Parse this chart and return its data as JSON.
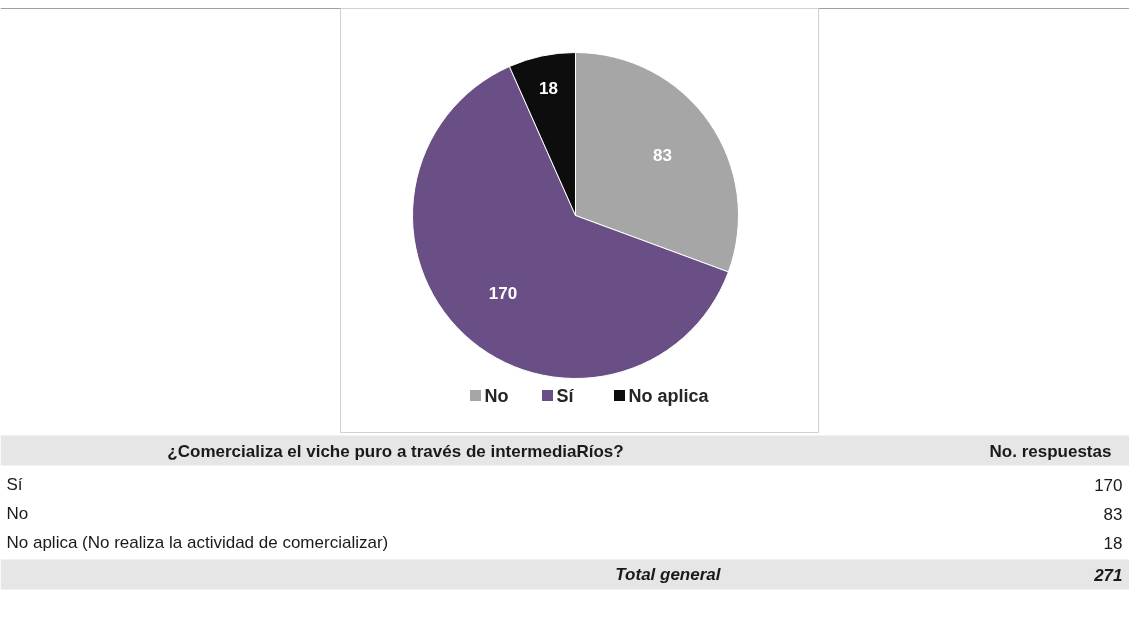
{
  "chart_data": {
    "type": "pie",
    "categories": [
      "No",
      "Sí",
      "No aplica"
    ],
    "values": [
      83,
      170,
      18
    ],
    "colors": [
      "#a6a6a6",
      "#6a4f87",
      "#0d0d0d"
    ],
    "data_labels": true,
    "legend": "bottom",
    "annotations": [
      "¿Comercializa el viche puro a través de intermediaRíos?",
      "No. respuestas",
      "Sí",
      "170",
      "No",
      "83",
      "No aplica (No realiza la actividad de comercializar)",
      "18",
      "Total general",
      "271"
    ]
  }
}
